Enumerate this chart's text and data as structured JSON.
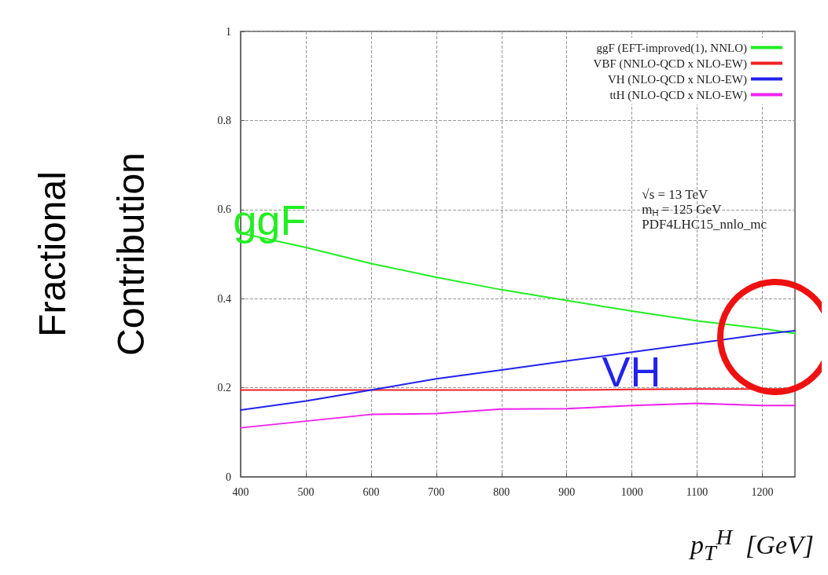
{
  "chart_data": {
    "type": "line",
    "xlabel": "p$_{T}$$^{H}$  [GeV]",
    "ylabel": "Fractional\nContribution",
    "x": [
      400,
      500,
      600,
      700,
      800,
      900,
      1000,
      1100,
      1200,
      1250
    ],
    "series": [
      {
        "name": "ggF (EFT-improved(1), NNLO)",
        "color": "#22ee22",
        "values": [
          0.547,
          0.515,
          0.479,
          0.448,
          0.42,
          0.396,
          0.372,
          0.35,
          0.333,
          0.322
        ]
      },
      {
        "name": "VBF (NNLO-QCD x NLO-EW)",
        "color": "#ee2222",
        "values": [
          0.195,
          0.195,
          0.195,
          0.195,
          0.195,
          0.195,
          0.196,
          0.197,
          0.197,
          0.197
        ]
      },
      {
        "name": "VH (NLO-QCD x NLO-EW)",
        "color": "#2222ee",
        "values": [
          0.15,
          0.17,
          0.195,
          0.22,
          0.24,
          0.26,
          0.28,
          0.3,
          0.32,
          0.328
        ]
      },
      {
        "name": "ttH (NLO-QCD x NLO-EW)",
        "color": "#ee22ee",
        "values": [
          0.11,
          0.125,
          0.14,
          0.142,
          0.152,
          0.153,
          0.16,
          0.165,
          0.16,
          0.16
        ]
      }
    ],
    "xlim": [
      400,
      1250
    ],
    "xticks": [
      400,
      500,
      600,
      700,
      800,
      900,
      1000,
      1100,
      1200
    ],
    "ylim": [
      0,
      1
    ],
    "yticks": [
      0,
      0.2,
      0.4,
      0.6,
      0.8,
      1
    ],
    "grid": true,
    "legend": "top right",
    "marker": "none",
    "line_style": "solid",
    "annotations": [
      "ggF",
      "VH",
      "√s = 13 TeV\nm$_{H}$ = 125 GeV\nPDF4LHC15_nnlo_mc"
    ]
  }
}
